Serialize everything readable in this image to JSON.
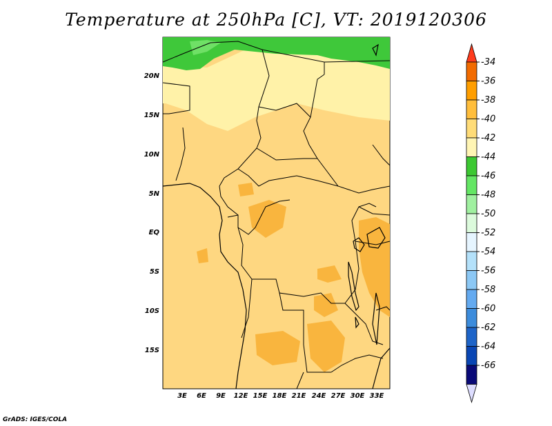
{
  "title": "Temperature at 250hPa [C], VT: 2019120306",
  "credit": "GrADS: IGES/COLA",
  "map": {
    "lat_labels": [
      "20N",
      "15N",
      "10N",
      "5N",
      "EQ",
      "5S",
      "10S",
      "15S"
    ],
    "lon_labels": [
      "3E",
      "6E",
      "9E",
      "12E",
      "15E",
      "18E",
      "21E",
      "24E",
      "27E",
      "30E",
      "33E"
    ]
  },
  "colorbar": {
    "labels": [
      "-34",
      "-36",
      "-38",
      "-40",
      "-42",
      "-44",
      "-46",
      "-48",
      "-50",
      "-52",
      "-54",
      "-56",
      "-58",
      "-60",
      "-62",
      "-64",
      "-66"
    ],
    "colors": [
      "#ff3c1e",
      "#f26b00",
      "#ff9e00",
      "#ffbe3c",
      "#ffdc78",
      "#fff5b4",
      "#3cc832",
      "#64e664",
      "#a0f0a0",
      "#dcfadc",
      "#e6f5ff",
      "#b4e1fa",
      "#8cc8f5",
      "#64aaf0",
      "#3c8cdc",
      "#1e64c8",
      "#0a46b4",
      "#0a0a78",
      "#ddddff"
    ]
  }
}
